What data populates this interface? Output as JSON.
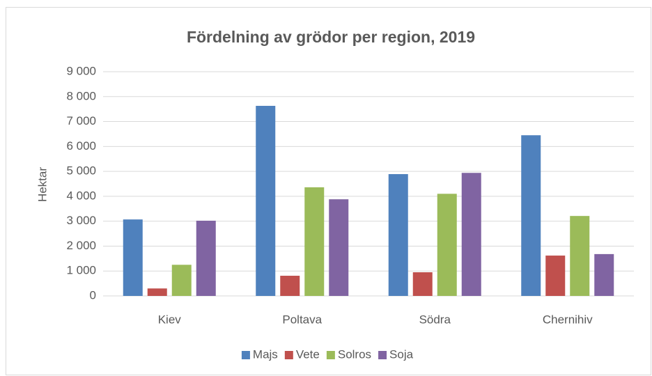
{
  "chart_data": {
    "type": "bar",
    "title": "Fördelning av grödor per region, 2019",
    "y_label": "Hektar",
    "categories": [
      "Kiev",
      "Poltava",
      "Södra",
      "Chernihiv"
    ],
    "series": [
      {
        "name": "Majs",
        "color": "#4f81bd",
        "values": [
          3070,
          7630,
          4890,
          6450
        ]
      },
      {
        "name": "Vete",
        "color": "#c0504d",
        "values": [
          300,
          810,
          950,
          1620
        ]
      },
      {
        "name": "Solros",
        "color": "#9bbb59",
        "values": [
          1250,
          4360,
          4100,
          3210
        ]
      },
      {
        "name": "Soja",
        "color": "#8064a2",
        "values": [
          3020,
          3880,
          4940,
          1680
        ]
      }
    ],
    "ylim": [
      0,
      9000
    ],
    "yticks": [
      0,
      {
        "value": 1000,
        "label": "1 000"
      },
      {
        "value": 2000,
        "label": "2 000"
      },
      {
        "value": 3000,
        "label": "3 000"
      },
      {
        "value": 4000,
        "label": "4 000"
      },
      {
        "value": 5000,
        "label": "5 000"
      },
      {
        "value": 6000,
        "label": "6 000"
      },
      {
        "value": 7000,
        "label": "7 000"
      },
      {
        "value": 8000,
        "label": "8 000"
      },
      {
        "value": 9000,
        "label": "9 000"
      }
    ],
    "grid": true,
    "legend": "bottom"
  }
}
